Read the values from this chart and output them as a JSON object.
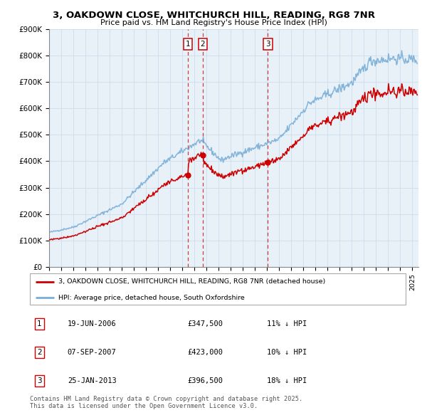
{
  "title": "3, OAKDOWN CLOSE, WHITCHURCH HILL, READING, RG8 7NR",
  "subtitle": "Price paid vs. HM Land Registry's House Price Index (HPI)",
  "ylim": [
    0,
    900000
  ],
  "yticks": [
    0,
    100000,
    200000,
    300000,
    400000,
    500000,
    600000,
    700000,
    800000,
    900000
  ],
  "ytick_labels": [
    "£0",
    "£100K",
    "£200K",
    "£300K",
    "£400K",
    "£500K",
    "£600K",
    "£700K",
    "£800K",
    "£900K"
  ],
  "xlim_start": 1995.0,
  "xlim_end": 2025.5,
  "sale_dates": [
    2006.463,
    2007.678,
    2013.069
  ],
  "sale_prices": [
    347500,
    423000,
    396500
  ],
  "sale_labels": [
    "1",
    "2",
    "3"
  ],
  "red_line_color": "#cc0000",
  "blue_line_color": "#7aaed6",
  "grid_color": "#ccddee",
  "chart_bg_color": "#e8f0f8",
  "background_color": "#ffffff",
  "legend_line1": "3, OAKDOWN CLOSE, WHITCHURCH HILL, READING, RG8 7NR (detached house)",
  "legend_line2": "HPI: Average price, detached house, South Oxfordshire",
  "table_entries": [
    {
      "num": "1",
      "date": "19-JUN-2006",
      "price": "£347,500",
      "hpi": "11% ↓ HPI"
    },
    {
      "num": "2",
      "date": "07-SEP-2007",
      "price": "£423,000",
      "hpi": "10% ↓ HPI"
    },
    {
      "num": "3",
      "date": "25-JAN-2013",
      "price": "£396,500",
      "hpi": "18% ↓ HPI"
    }
  ],
  "footer": "Contains HM Land Registry data © Crown copyright and database right 2025.\nThis data is licensed under the Open Government Licence v3.0."
}
